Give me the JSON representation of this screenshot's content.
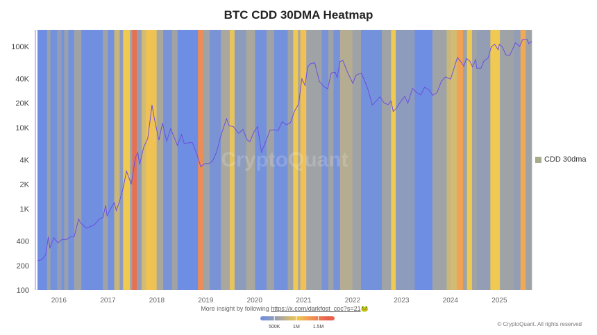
{
  "title": "BTC CDD 30DMA Heatmap",
  "legend": {
    "label": "CDD 30dma",
    "color": "#a9ab8e"
  },
  "watermark": "CryptoQuant",
  "footer": {
    "insight_text": "More insight by following",
    "link": "https://x.com/darkfost_coc?s=21",
    "emoji": "🐸",
    "copyright": "© CryptoQuant. All rights reserved"
  },
  "colors": {
    "line": "#6a4fe0",
    "low": "#6b8de6",
    "mid": "#a0a3a6",
    "high": "#f0c952",
    "higher": "#f09a55",
    "max": "#e8614d"
  },
  "chart_data": {
    "type": "heatmap",
    "title": "BTC CDD 30DMA Heatmap",
    "y_scale": "log",
    "ylim": [
      100,
      160000
    ],
    "xlim": [
      "2015-08-15",
      "2025-09-20"
    ],
    "y_ticks": [
      {
        "v": 100,
        "l": "100"
      },
      {
        "v": 200,
        "l": "200"
      },
      {
        "v": 400,
        "l": "400"
      },
      {
        "v": 1000,
        "l": "1K"
      },
      {
        "v": 2000,
        "l": "2K"
      },
      {
        "v": 4000,
        "l": "4K"
      },
      {
        "v": 10000,
        "l": "10K"
      },
      {
        "v": 20000,
        "l": "20K"
      },
      {
        "v": 40000,
        "l": "40K"
      },
      {
        "v": 100000,
        "l": "100K"
      }
    ],
    "x_ticks": [
      "2016",
      "2017",
      "2018",
      "2019",
      "2020",
      "2021",
      "2022",
      "2023",
      "2024",
      "2025"
    ],
    "colorbar": {
      "range": [
        180000,
        1870000
      ],
      "ticks": [
        {
          "v": 500000,
          "l": "500K"
        },
        {
          "v": 1000000,
          "l": "1M"
        },
        {
          "v": 1500000,
          "l": "1.5M"
        }
      ]
    },
    "cdd_segments": [
      [
        "2015-08-15",
        200000
      ],
      [
        "2015-10-25",
        550000
      ],
      [
        "2015-11-20",
        250000
      ],
      [
        "2016-01-10",
        500000
      ],
      [
        "2016-02-10",
        250000
      ],
      [
        "2016-03-01",
        550000
      ],
      [
        "2016-04-01",
        250000
      ],
      [
        "2016-05-15",
        600000
      ],
      [
        "2016-07-08",
        220000
      ],
      [
        "2016-12-15",
        600000
      ],
      [
        "2017-01-20",
        250000
      ],
      [
        "2017-03-10",
        800000
      ],
      [
        "2017-04-20",
        450000
      ],
      [
        "2017-05-15",
        1000000
      ],
      [
        "2017-07-05",
        600000
      ],
      [
        "2017-07-22",
        1600000
      ],
      [
        "2017-08-25",
        500000
      ],
      [
        "2017-10-01",
        850000
      ],
      [
        "2017-11-01",
        1050000
      ],
      [
        "2018-01-20",
        650000
      ],
      [
        "2018-03-10",
        300000
      ],
      [
        "2018-05-15",
        600000
      ],
      [
        "2018-06-25",
        200000
      ],
      [
        "2018-11-25",
        1400000
      ],
      [
        "2019-01-01",
        600000
      ],
      [
        "2019-02-20",
        300000
      ],
      [
        "2019-05-15",
        650000
      ],
      [
        "2019-07-20",
        950000
      ],
      [
        "2019-08-25",
        450000
      ],
      [
        "2019-11-20",
        650000
      ],
      [
        "2020-01-25",
        250000
      ],
      [
        "2020-04-20",
        600000
      ],
      [
        "2020-06-15",
        250000
      ],
      [
        "2020-09-25",
        600000
      ],
      [
        "2020-11-05",
        1000000
      ],
      [
        "2020-12-10",
        650000
      ],
      [
        "2020-12-28",
        1050000
      ],
      [
        "2021-02-10",
        600000
      ],
      [
        "2021-06-05",
        300000
      ],
      [
        "2021-07-25",
        600000
      ],
      [
        "2021-09-01",
        280000
      ],
      [
        "2021-10-20",
        700000
      ],
      [
        "2022-01-20",
        600000
      ],
      [
        "2022-03-25",
        250000
      ],
      [
        "2022-08-28",
        600000
      ],
      [
        "2022-11-05",
        1000000
      ],
      [
        "2022-12-10",
        450000
      ],
      [
        "2023-05-01",
        200000
      ],
      [
        "2023-09-10",
        600000
      ],
      [
        "2023-12-25",
        800000
      ],
      [
        "2024-01-25",
        850000
      ],
      [
        "2024-03-10",
        1250000
      ],
      [
        "2024-04-25",
        600000
      ],
      [
        "2024-05-25",
        1000000
      ],
      [
        "2024-07-01",
        600000
      ],
      [
        "2024-08-05",
        500000
      ],
      [
        "2024-11-15",
        1000000
      ],
      [
        "2025-01-25",
        600000
      ],
      [
        "2025-05-08",
        500000
      ],
      [
        "2025-06-28",
        1200000
      ],
      [
        "2025-08-05",
        600000
      ],
      [
        "2025-09-20",
        null
      ]
    ],
    "price": [
      [
        "2015-08-15",
        230
      ],
      [
        "2015-09-15",
        235
      ],
      [
        "2015-10-15",
        270
      ],
      [
        "2015-11-04",
        450
      ],
      [
        "2015-11-15",
        330
      ],
      [
        "2015-12-15",
        440
      ],
      [
        "2016-01-15",
        380
      ],
      [
        "2016-02-15",
        420
      ],
      [
        "2016-03-15",
        415
      ],
      [
        "2016-04-15",
        450
      ],
      [
        "2016-05-15",
        455
      ],
      [
        "2016-06-17",
        750
      ],
      [
        "2016-07-01",
        670
      ],
      [
        "2016-08-15",
        575
      ],
      [
        "2016-09-15",
        605
      ],
      [
        "2016-10-15",
        640
      ],
      [
        "2016-11-15",
        740
      ],
      [
        "2016-12-15",
        780
      ],
      [
        "2017-01-05",
        1100
      ],
      [
        "2017-01-15",
        820
      ],
      [
        "2017-02-15",
        1030
      ],
      [
        "2017-03-10",
        1190
      ],
      [
        "2017-03-25",
        950
      ],
      [
        "2017-04-15",
        1180
      ],
      [
        "2017-05-15",
        1800
      ],
      [
        "2017-06-10",
        2900
      ],
      [
        "2017-07-15",
        2000
      ],
      [
        "2017-08-15",
        4300
      ],
      [
        "2017-09-02",
        4900
      ],
      [
        "2017-09-15",
        3500
      ],
      [
        "2017-10-15",
        5700
      ],
      [
        "2017-11-15",
        7300
      ],
      [
        "2017-12-17",
        19000
      ],
      [
        "2018-01-01",
        13500
      ],
      [
        "2018-02-06",
        7000
      ],
      [
        "2018-03-05",
        11400
      ],
      [
        "2018-04-05",
        6800
      ],
      [
        "2018-05-05",
        9700
      ],
      [
        "2018-06-25",
        6000
      ],
      [
        "2018-07-25",
        8200
      ],
      [
        "2018-08-15",
        6300
      ],
      [
        "2018-09-15",
        6500
      ],
      [
        "2018-10-15",
        6500
      ],
      [
        "2018-11-20",
        4500
      ],
      [
        "2018-12-15",
        3300
      ],
      [
        "2019-01-15",
        3600
      ],
      [
        "2019-02-15",
        3600
      ],
      [
        "2019-03-15",
        3900
      ],
      [
        "2019-04-15",
        5100
      ],
      [
        "2019-05-15",
        8000
      ],
      [
        "2019-06-26",
        12900
      ],
      [
        "2019-07-15",
        10500
      ],
      [
        "2019-08-15",
        10300
      ],
      [
        "2019-09-25",
        8500
      ],
      [
        "2019-10-26",
        9500
      ],
      [
        "2019-11-25",
        7100
      ],
      [
        "2019-12-17",
        6700
      ],
      [
        "2020-01-15",
        8700
      ],
      [
        "2020-02-12",
        10300
      ],
      [
        "2020-03-13",
        5000
      ],
      [
        "2020-04-15",
        6800
      ],
      [
        "2020-05-15",
        9300
      ],
      [
        "2020-06-15",
        9400
      ],
      [
        "2020-07-15",
        9200
      ],
      [
        "2020-08-15",
        11800
      ],
      [
        "2020-09-15",
        10800
      ],
      [
        "2020-10-15",
        11500
      ],
      [
        "2020-11-15",
        16000
      ],
      [
        "2020-12-15",
        19500
      ],
      [
        "2021-01-08",
        40000
      ],
      [
        "2021-02-01",
        33000
      ],
      [
        "2021-02-21",
        56000
      ],
      [
        "2021-03-13",
        61000
      ],
      [
        "2021-04-14",
        63000
      ],
      [
        "2021-05-19",
        37000
      ],
      [
        "2021-06-22",
        32000
      ],
      [
        "2021-07-20",
        30000
      ],
      [
        "2021-08-15",
        47000
      ],
      [
        "2021-09-15",
        48000
      ],
      [
        "2021-09-28",
        41000
      ],
      [
        "2021-10-20",
        65000
      ],
      [
        "2021-11-10",
        67000
      ],
      [
        "2021-12-15",
        48000
      ],
      [
        "2022-01-24",
        35000
      ],
      [
        "2022-02-15",
        44000
      ],
      [
        "2022-03-28",
        47000
      ],
      [
        "2022-04-15",
        40000
      ],
      [
        "2022-05-15",
        30000
      ],
      [
        "2022-06-18",
        19000
      ],
      [
        "2022-07-15",
        21000
      ],
      [
        "2022-08-15",
        24000
      ],
      [
        "2022-09-15",
        20000
      ],
      [
        "2022-10-15",
        19200
      ],
      [
        "2022-11-05",
        21200
      ],
      [
        "2022-11-21",
        15800
      ],
      [
        "2022-12-15",
        17300
      ],
      [
        "2023-01-15",
        20800
      ],
      [
        "2023-02-15",
        24300
      ],
      [
        "2023-03-10",
        20000
      ],
      [
        "2023-04-14",
        30400
      ],
      [
        "2023-05-15",
        27000
      ],
      [
        "2023-06-15",
        25200
      ],
      [
        "2023-07-13",
        31400
      ],
      [
        "2023-08-15",
        29200
      ],
      [
        "2023-09-11",
        25000
      ],
      [
        "2023-10-15",
        27000
      ],
      [
        "2023-11-15",
        37000
      ],
      [
        "2023-12-15",
        42000
      ],
      [
        "2024-01-23",
        39500
      ],
      [
        "2024-02-15",
        52000
      ],
      [
        "2024-03-14",
        73000
      ],
      [
        "2024-04-15",
        63000
      ],
      [
        "2024-05-01",
        57000
      ],
      [
        "2024-05-21",
        71000
      ],
      [
        "2024-06-15",
        66000
      ],
      [
        "2024-07-05",
        56000
      ],
      [
        "2024-07-29",
        69000
      ],
      [
        "2024-08-05",
        54000
      ],
      [
        "2024-09-06",
        54000
      ],
      [
        "2024-09-28",
        66000
      ],
      [
        "2024-10-29",
        72000
      ],
      [
        "2024-11-22",
        99000
      ],
      [
        "2024-12-17",
        106000
      ],
      [
        "2025-01-13",
        91000
      ],
      [
        "2025-01-21",
        106000
      ],
      [
        "2025-02-15",
        97000
      ],
      [
        "2025-03-10",
        79000
      ],
      [
        "2025-04-08",
        77000
      ],
      [
        "2025-05-22",
        111000
      ],
      [
        "2025-06-22",
        100000
      ],
      [
        "2025-07-14",
        122000
      ],
      [
        "2025-08-14",
        123000
      ],
      [
        "2025-08-30",
        108000
      ],
      [
        "2025-09-20",
        116000
      ]
    ]
  }
}
